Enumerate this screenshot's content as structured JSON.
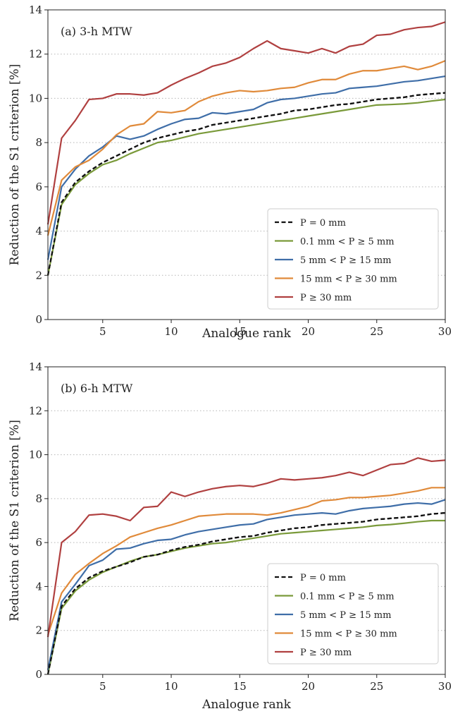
{
  "colors": {
    "P0": "#111111",
    "P0_1_5": "#7a9a3a",
    "P5_15": "#3f6ea8",
    "P15_30": "#e08a3a",
    "P30": "#b04040"
  },
  "chart_data": [
    {
      "type": "line",
      "title": "(a) 3-h MTW",
      "xlabel": "Analogue rank",
      "ylabel": "Reduction of the S1 criterion [%]",
      "xlim": [
        1,
        30
      ],
      "ylim": [
        0,
        14
      ],
      "xticks": [
        5,
        10,
        15,
        20,
        25,
        30
      ],
      "yticks": [
        0,
        2,
        4,
        6,
        8,
        10,
        12,
        14
      ],
      "grid": "horizontal-dotted",
      "legend_position": "lower-right",
      "x": [
        1,
        2,
        3,
        4,
        5,
        6,
        7,
        8,
        9,
        10,
        11,
        12,
        13,
        14,
        15,
        16,
        17,
        18,
        19,
        20,
        21,
        22,
        23,
        24,
        25,
        26,
        27,
        28,
        29,
        30
      ],
      "series": [
        {
          "name": "P = 0 mm",
          "color_key": "P0",
          "dash": true,
          "values": [
            2.0,
            5.3,
            6.2,
            6.7,
            7.1,
            7.4,
            7.7,
            8.0,
            8.2,
            8.35,
            8.5,
            8.6,
            8.8,
            8.9,
            9.0,
            9.1,
            9.2,
            9.3,
            9.45,
            9.5,
            9.6,
            9.7,
            9.75,
            9.85,
            9.95,
            10.0,
            10.05,
            10.15,
            10.2,
            10.25
          ]
        },
        {
          "name": "0.1 mm <  P ≥  5 mm",
          "color_key": "P0_1_5",
          "dash": false,
          "values": [
            2.0,
            5.2,
            6.1,
            6.6,
            7.0,
            7.2,
            7.5,
            7.75,
            8.0,
            8.1,
            8.25,
            8.4,
            8.5,
            8.6,
            8.7,
            8.8,
            8.9,
            9.0,
            9.1,
            9.2,
            9.3,
            9.4,
            9.5,
            9.6,
            9.7,
            9.72,
            9.75,
            9.8,
            9.88,
            9.95
          ]
        },
        {
          "name": "5 mm <  P ≥  15 mm",
          "color_key": "P5_15",
          "dash": false,
          "values": [
            2.7,
            6.0,
            6.8,
            7.4,
            7.8,
            8.3,
            8.15,
            8.3,
            8.6,
            8.85,
            9.05,
            9.1,
            9.35,
            9.3,
            9.4,
            9.5,
            9.8,
            9.95,
            10.0,
            10.1,
            10.2,
            10.25,
            10.45,
            10.5,
            10.55,
            10.65,
            10.75,
            10.8,
            10.9,
            11.0
          ]
        },
        {
          "name": "15 mm <  P ≥  30 mm",
          "color_key": "P15_30",
          "dash": false,
          "values": [
            3.8,
            6.3,
            6.9,
            7.2,
            7.7,
            8.35,
            8.75,
            8.85,
            9.4,
            9.35,
            9.45,
            9.85,
            10.1,
            10.25,
            10.35,
            10.3,
            10.35,
            10.45,
            10.5,
            10.7,
            10.85,
            10.85,
            11.1,
            11.25,
            11.25,
            11.35,
            11.45,
            11.3,
            11.45,
            11.7
          ]
        },
        {
          "name": "P ≥  30 mm",
          "color_key": "P30",
          "dash": false,
          "values": [
            4.3,
            8.2,
            9.0,
            9.95,
            10.0,
            10.2,
            10.2,
            10.15,
            10.25,
            10.6,
            10.9,
            11.15,
            11.45,
            11.6,
            11.85,
            12.25,
            12.6,
            12.25,
            12.15,
            12.05,
            12.25,
            12.05,
            12.35,
            12.45,
            12.85,
            12.9,
            13.1,
            13.2,
            13.25,
            13.45
          ]
        }
      ]
    },
    {
      "type": "line",
      "title": "(b) 6-h MTW",
      "xlabel": "Analogue rank",
      "ylabel": "Reduction of the S1 criterion [%]",
      "xlim": [
        1,
        30
      ],
      "ylim": [
        0,
        14
      ],
      "xticks": [
        5,
        10,
        15,
        20,
        25,
        30
      ],
      "yticks": [
        0,
        2,
        4,
        6,
        8,
        10,
        12,
        14
      ],
      "grid": "horizontal-dotted",
      "legend_position": "lower-right",
      "x": [
        1,
        2,
        3,
        4,
        5,
        6,
        7,
        8,
        9,
        10,
        11,
        12,
        13,
        14,
        15,
        16,
        17,
        18,
        19,
        20,
        21,
        22,
        23,
        24,
        25,
        26,
        27,
        28,
        29,
        30
      ],
      "series": [
        {
          "name": "P = 0 mm",
          "color_key": "P0",
          "dash": true,
          "values": [
            0.0,
            3.1,
            3.9,
            4.4,
            4.7,
            4.9,
            5.1,
            5.35,
            5.45,
            5.65,
            5.8,
            5.9,
            6.05,
            6.15,
            6.25,
            6.3,
            6.45,
            6.55,
            6.65,
            6.7,
            6.8,
            6.85,
            6.9,
            6.95,
            7.05,
            7.1,
            7.15,
            7.2,
            7.3,
            7.35
          ]
        },
        {
          "name": "0.1 mm <  P ≥  5 mm",
          "color_key": "P0_1_5",
          "dash": false,
          "values": [
            0.0,
            3.0,
            3.8,
            4.3,
            4.65,
            4.9,
            5.15,
            5.35,
            5.45,
            5.6,
            5.75,
            5.85,
            5.95,
            6.0,
            6.1,
            6.2,
            6.3,
            6.4,
            6.45,
            6.5,
            6.55,
            6.6,
            6.65,
            6.7,
            6.78,
            6.82,
            6.88,
            6.95,
            7.0,
            7.0
          ]
        },
        {
          "name": "5 mm <  P ≥  15 mm",
          "color_key": "P5_15",
          "dash": false,
          "values": [
            0.2,
            3.3,
            4.1,
            4.95,
            5.2,
            5.7,
            5.75,
            5.95,
            6.1,
            6.15,
            6.35,
            6.5,
            6.6,
            6.7,
            6.8,
            6.85,
            7.05,
            7.15,
            7.25,
            7.3,
            7.35,
            7.3,
            7.45,
            7.55,
            7.6,
            7.65,
            7.75,
            7.8,
            7.75,
            7.95
          ]
        },
        {
          "name": "15 mm <  P ≥  30 mm",
          "color_key": "P15_30",
          "dash": false,
          "values": [
            1.8,
            3.7,
            4.55,
            5.05,
            5.5,
            5.85,
            6.25,
            6.45,
            6.65,
            6.8,
            7.0,
            7.2,
            7.25,
            7.3,
            7.3,
            7.3,
            7.25,
            7.35,
            7.5,
            7.65,
            7.9,
            7.95,
            8.05,
            8.05,
            8.1,
            8.15,
            8.25,
            8.35,
            8.5,
            8.5
          ]
        },
        {
          "name": "P ≥  30 mm",
          "color_key": "P30",
          "dash": false,
          "values": [
            1.7,
            6.0,
            6.5,
            7.25,
            7.3,
            7.2,
            7.0,
            7.6,
            7.65,
            8.3,
            8.1,
            8.3,
            8.45,
            8.55,
            8.6,
            8.55,
            8.7,
            8.9,
            8.85,
            8.9,
            8.95,
            9.05,
            9.2,
            9.05,
            9.3,
            9.55,
            9.6,
            9.85,
            9.7,
            9.75
          ]
        }
      ]
    }
  ]
}
